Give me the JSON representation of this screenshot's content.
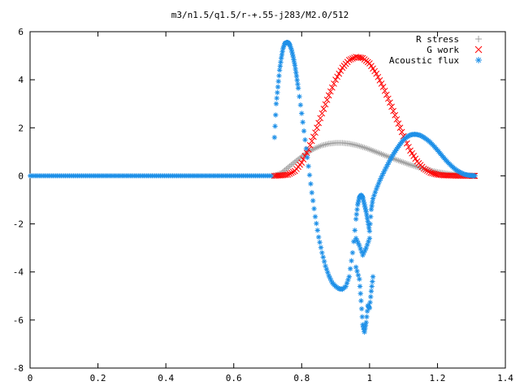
{
  "chart_data": {
    "type": "scatter",
    "title": "m3/n1.5/q1.5/r-+.55-j283/M2.0/512",
    "xlabel": "",
    "ylabel": "",
    "xlim": [
      0,
      1.4
    ],
    "ylim": [
      -8,
      6
    ],
    "x_ticks": [
      0,
      0.2,
      0.4,
      0.6,
      0.8,
      1,
      1.2,
      1.4
    ],
    "x_tick_labels": [
      "0",
      "0.2",
      "0.4",
      "0.6",
      "0.8",
      "1",
      "1.2",
      "1.4"
    ],
    "y_ticks": [
      -8,
      -6,
      -4,
      -2,
      0,
      2,
      4,
      6
    ],
    "y_tick_labels": [
      "-8",
      "-6",
      "-4",
      "-2",
      "0",
      "2",
      "4",
      "6"
    ],
    "grid": false,
    "legend_position": "top-right",
    "series": [
      {
        "name": "R stress",
        "marker": "plus",
        "color": "#a0a0a0",
        "x": [
          0.72,
          0.74,
          0.76,
          0.78,
          0.8,
          0.82,
          0.84,
          0.86,
          0.88,
          0.9,
          0.92,
          0.94,
          0.96,
          0.98,
          1.0,
          1.02,
          1.04,
          1.06,
          1.08,
          1.1,
          1.12,
          1.14,
          1.16,
          1.18,
          1.2,
          1.22,
          1.24,
          1.26,
          1.28,
          1.3,
          1.31
        ],
        "y": [
          0.0,
          0.12,
          0.35,
          0.58,
          0.8,
          1.0,
          1.15,
          1.27,
          1.34,
          1.37,
          1.37,
          1.34,
          1.28,
          1.2,
          1.1,
          0.99,
          0.88,
          0.77,
          0.66,
          0.56,
          0.46,
          0.37,
          0.29,
          0.22,
          0.16,
          0.11,
          0.07,
          0.04,
          0.02,
          0.01,
          0.0
        ]
      },
      {
        "name": "G work",
        "marker": "cross",
        "color": "#ff0000",
        "x": [
          0.72,
          0.74,
          0.76,
          0.78,
          0.8,
          0.82,
          0.84,
          0.86,
          0.88,
          0.9,
          0.92,
          0.94,
          0.96,
          0.98,
          1.0,
          1.02,
          1.04,
          1.06,
          1.08,
          1.1,
          1.12,
          1.14,
          1.16,
          1.18,
          1.2,
          1.22,
          1.24,
          1.26,
          1.28,
          1.3,
          1.31
        ],
        "y": [
          0.0,
          0.02,
          0.05,
          0.2,
          0.55,
          1.1,
          1.8,
          2.6,
          3.35,
          4.0,
          4.5,
          4.82,
          4.95,
          4.9,
          4.68,
          4.25,
          3.7,
          3.05,
          2.35,
          1.65,
          1.05,
          0.6,
          0.3,
          0.13,
          0.05,
          0.02,
          0.01,
          0.0,
          0.0,
          0.0,
          0.0
        ]
      },
      {
        "name": "Acoustic flux",
        "marker": "star",
        "color": "#1e90e8",
        "x": [
          0.72,
          0.725,
          0.73,
          0.735,
          0.74,
          0.745,
          0.75,
          0.755,
          0.76,
          0.765,
          0.77,
          0.775,
          0.78,
          0.785,
          0.79,
          0.8,
          0.81,
          0.82,
          0.83,
          0.84,
          0.85,
          0.86,
          0.87,
          0.88,
          0.89,
          0.9,
          0.91,
          0.92,
          0.93,
          0.94,
          0.95,
          0.96,
          0.965,
          0.97,
          0.975,
          0.98,
          0.985,
          0.99,
          0.995,
          1.0,
          1.005,
          1.01,
          1.02,
          1.03,
          1.04,
          1.05,
          1.06,
          1.07,
          1.08,
          1.09,
          1.1,
          1.11,
          1.12,
          1.13,
          1.14,
          1.15,
          1.16,
          1.17,
          1.18,
          1.19,
          1.2,
          1.21,
          1.22,
          1.23,
          1.24,
          1.25,
          1.26,
          1.27,
          1.28,
          1.29,
          1.3,
          1.31,
          0.96,
          0.97,
          0.975,
          0.98,
          0.985,
          0.99,
          0.995,
          1.0,
          1.005,
          1.01,
          0.96,
          0.97,
          0.98,
          0.99,
          1.0
        ],
        "y": [
          1.6,
          3.0,
          3.7,
          4.4,
          4.9,
          5.3,
          5.5,
          5.55,
          5.55,
          5.45,
          5.25,
          4.95,
          4.6,
          4.15,
          3.65,
          2.6,
          1.5,
          0.4,
          -0.7,
          -1.7,
          -2.55,
          -3.2,
          -3.75,
          -4.15,
          -4.45,
          -4.6,
          -4.7,
          -4.72,
          -4.6,
          -4.2,
          -3.2,
          -1.8,
          -1.2,
          -0.9,
          -0.8,
          -0.9,
          -1.2,
          -1.5,
          -1.9,
          -2.3,
          -1.4,
          -0.95,
          -0.55,
          -0.2,
          0.1,
          0.38,
          0.65,
          0.9,
          1.12,
          1.32,
          1.5,
          1.62,
          1.7,
          1.73,
          1.72,
          1.68,
          1.6,
          1.5,
          1.38,
          1.23,
          1.07,
          0.9,
          0.73,
          0.57,
          0.43,
          0.3,
          0.2,
          0.12,
          0.06,
          0.03,
          0.01,
          0.0,
          -3.8,
          -4.3,
          -5.2,
          -6.2,
          -6.5,
          -6.1,
          -5.4,
          -5.5,
          -4.8,
          -4.2,
          -2.6,
          -2.9,
          -3.3,
          -3.0,
          -2.6
        ]
      }
    ],
    "zero_line_xmin": 0,
    "zero_line_xmax": 0.72
  }
}
